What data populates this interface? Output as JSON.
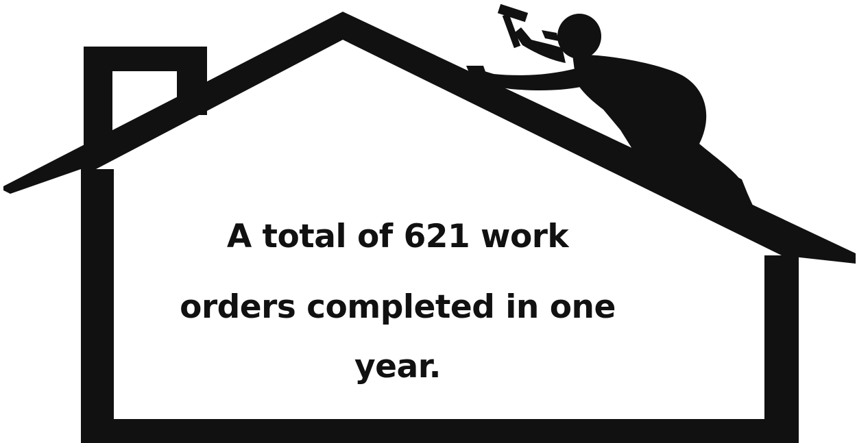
{
  "message": {
    "line1": "A total of 621 work",
    "line2": "orders completed in one",
    "line3": "year."
  },
  "colors": {
    "silhouette": "#111111",
    "background": "#ffffff"
  },
  "graphics": {
    "house": "house-outline-icon",
    "chimney": "chimney-icon",
    "worker": "roofer-silhouette-icon",
    "hammer": "hammer-icon"
  }
}
